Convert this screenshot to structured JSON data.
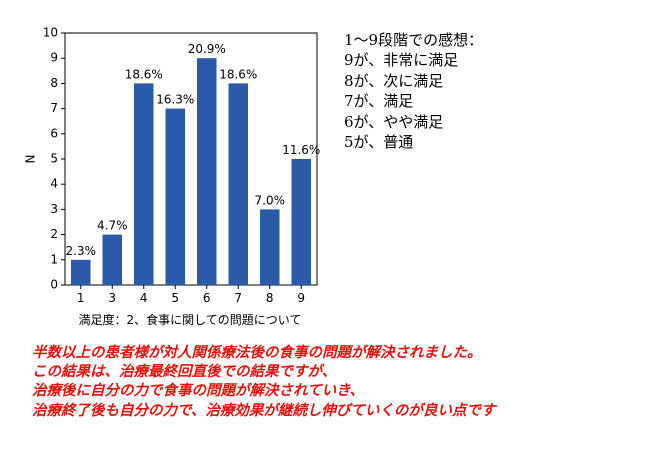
{
  "chart_data": {
    "type": "bar",
    "categories": [
      "1",
      "3",
      "4",
      "5",
      "6",
      "7",
      "8",
      "9"
    ],
    "values": [
      1,
      2,
      8,
      7,
      9,
      8,
      3,
      5
    ],
    "data_labels": [
      "2.3%",
      "4.7%",
      "18.6%",
      "16.3%",
      "20.9%",
      "18.6%",
      "7.0%",
      "11.6%"
    ],
    "ylabel": "N",
    "xlabel": "満足度：2、食事に関しての問題について",
    "ylim": [
      0,
      10
    ],
    "yticks": [
      "0",
      "1",
      "2",
      "3",
      "4",
      "5",
      "6",
      "7",
      "8",
      "9",
      "10"
    ],
    "grid": false,
    "legend": "none",
    "bar_color": "#2b5ba8"
  },
  "scale_legend": {
    "title": "1～9段階での感想：",
    "items": [
      "9が、非常に満足",
      "8が、次に満足",
      "7が、満足",
      "6が、やや満足",
      "5が、普通"
    ]
  },
  "conclusion": {
    "color": "#e8120d",
    "lines": [
      "半数以上の患者様が対人関係療法後の食事の問題が解決されました。",
      "この結果は、治療最終回直後での結果ですが、",
      "治療後に自分の力で食事の問題が解決されていき、",
      "治療終了後も自分の力で、治療効果が継続し伸びていくのが良い点です"
    ]
  }
}
